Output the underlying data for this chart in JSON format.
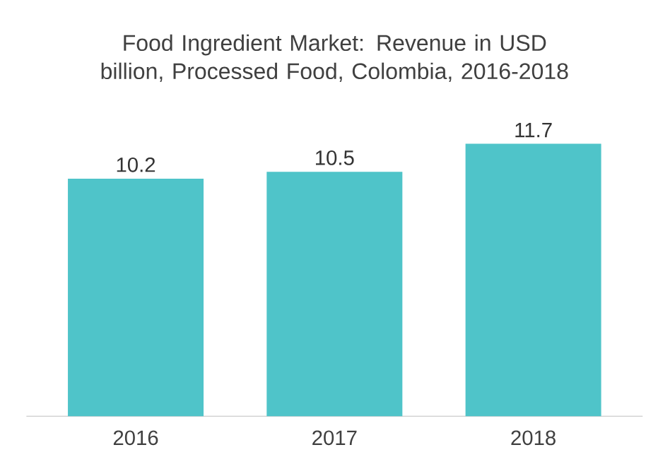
{
  "chart_data": {
    "type": "bar",
    "title": "Food Ingredient Market: Revenue in USD billion, Processed Food, Colombia, 2016-2018",
    "categories": [
      "2016",
      "2017",
      "2018"
    ],
    "values": [
      10.2,
      10.5,
      11.7
    ],
    "color": "#4fc4c9",
    "data_labels": true
  }
}
